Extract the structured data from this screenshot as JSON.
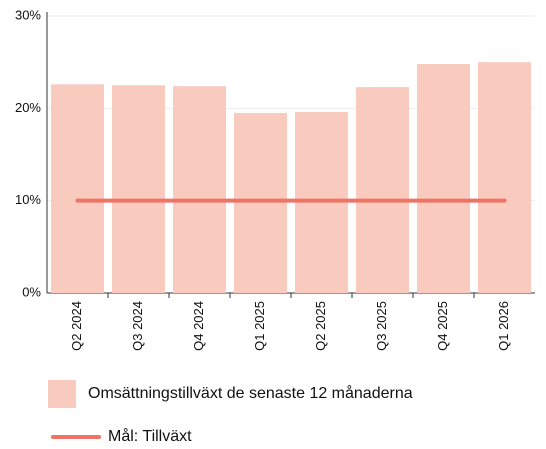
{
  "chart_data": {
    "type": "bar",
    "categories": [
      "Q2 2024",
      "Q3 2024",
      "Q4 2024",
      "Q1 2025",
      "Q2 2025",
      "Q3 2025",
      "Q4 2025",
      "Q1 2026"
    ],
    "series": [
      {
        "name": "Omsättningstillväxt de senaste 12 månaderna",
        "type": "bar",
        "color": "#f9cbbf",
        "values": [
          22.6,
          22.5,
          22.4,
          19.5,
          19.6,
          22.3,
          24.8,
          25.0
        ]
      },
      {
        "name": "Mål: Tillväxt",
        "type": "line",
        "color": "#ef7466",
        "values": [
          10,
          10,
          10,
          10,
          10,
          10,
          10,
          10
        ]
      }
    ],
    "ylim": [
      0,
      30
    ],
    "yticks": [
      {
        "value": 0,
        "label": "0%"
      },
      {
        "value": 10,
        "label": "10%"
      },
      {
        "value": 20,
        "label": "20%"
      },
      {
        "value": 30,
        "label": "30%"
      }
    ],
    "grid": true
  }
}
